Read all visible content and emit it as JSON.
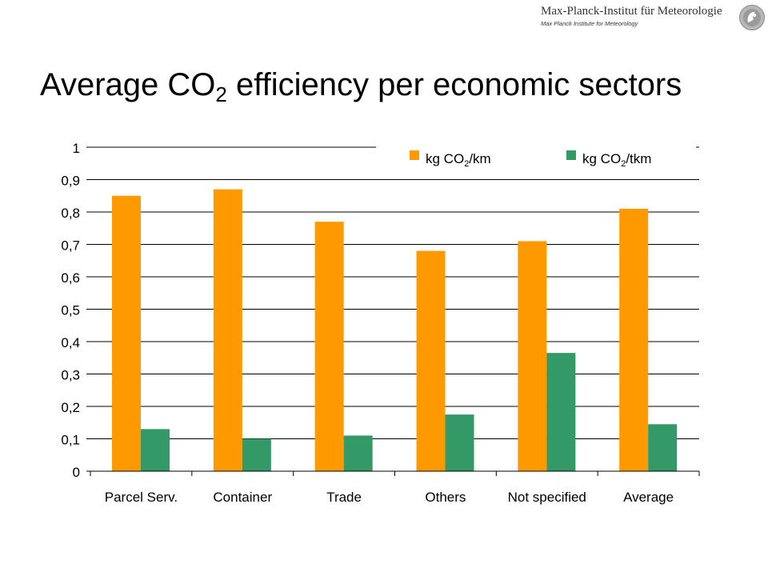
{
  "header": {
    "institute_name": "Max-Planck-Institut für Meteorologie",
    "institute_name_en": "Max Planck Institute for Meteorology"
  },
  "title": {
    "prefix": "Average CO",
    "subscript": "2",
    "suffix": " efficiency per economic sectors"
  },
  "chart_data": {
    "type": "bar",
    "categories": [
      "Parcel Serv.",
      "Container",
      "Trade",
      "Others",
      "Not specified",
      "Average"
    ],
    "series": [
      {
        "name": "kg CO2/km",
        "legend": {
          "before": "kg CO",
          "sub": "2",
          "after": "/km"
        },
        "color": "#FF9900",
        "values": [
          0.85,
          0.87,
          0.77,
          0.68,
          0.71,
          0.81
        ]
      },
      {
        "name": "kg CO2/tkm",
        "legend": {
          "before": "kg CO",
          "sub": "2",
          "after": "/tkm"
        },
        "color": "#339966",
        "values": [
          0.13,
          0.1,
          0.11,
          0.175,
          0.365,
          0.145
        ]
      }
    ],
    "ylim": [
      0,
      1
    ],
    "yticks": [
      "0",
      "0,1",
      "0,2",
      "0,3",
      "0,4",
      "0,5",
      "0,6",
      "0,7",
      "0,8",
      "0,9",
      "1"
    ],
    "grid": true,
    "legend_position": "top-right",
    "xlabel": "",
    "ylabel": ""
  }
}
